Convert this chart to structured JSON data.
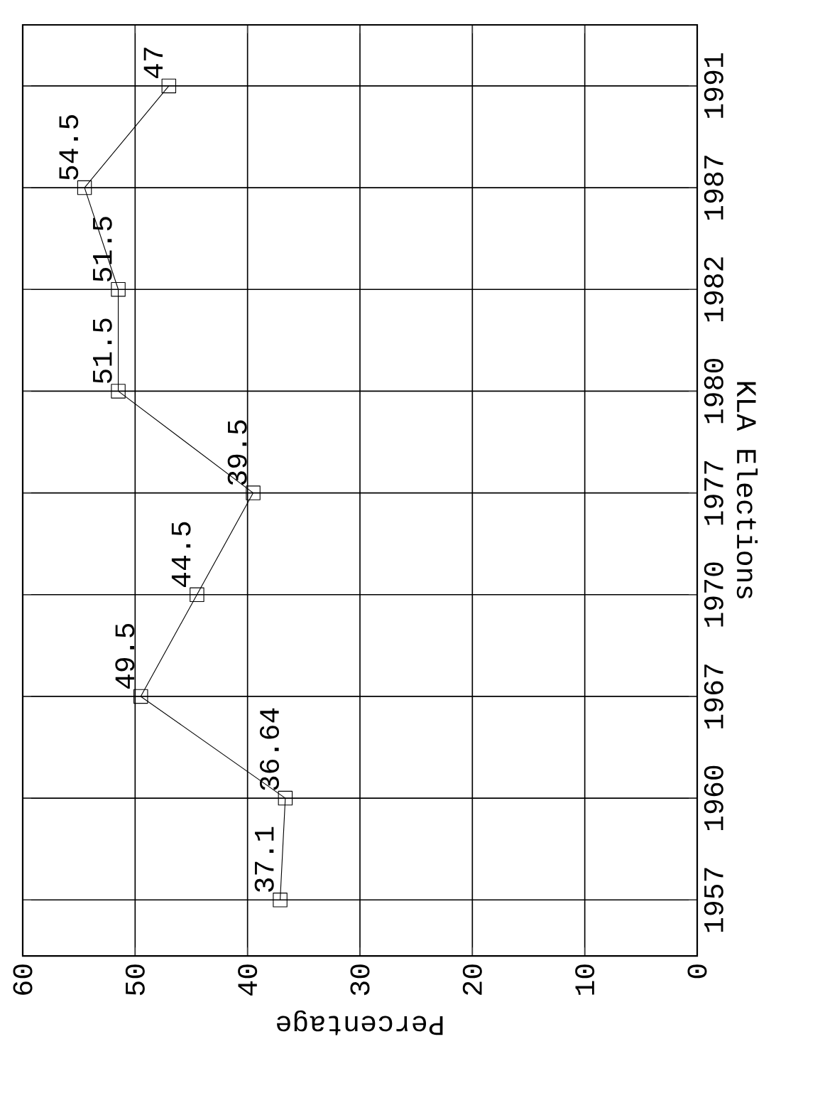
{
  "chart_data": {
    "type": "line",
    "orientation": "horizontal",
    "xlabel": "Percentage",
    "ylabel": "KLA Elections",
    "categories": [
      "1991",
      "1987",
      "1982",
      "1980",
      "1977",
      "1970",
      "1967",
      "1960",
      "1957"
    ],
    "values": [
      47,
      54.5,
      51.5,
      51.5,
      39.5,
      44.5,
      49.5,
      36.64,
      37.1
    ],
    "color": "#000000",
    "xlim": [
      60,
      0
    ],
    "xticks": [
      0,
      10,
      20,
      30,
      40,
      50,
      60
    ],
    "grid": true,
    "marker": "square",
    "line_style": "solid",
    "data_labels": true
  }
}
